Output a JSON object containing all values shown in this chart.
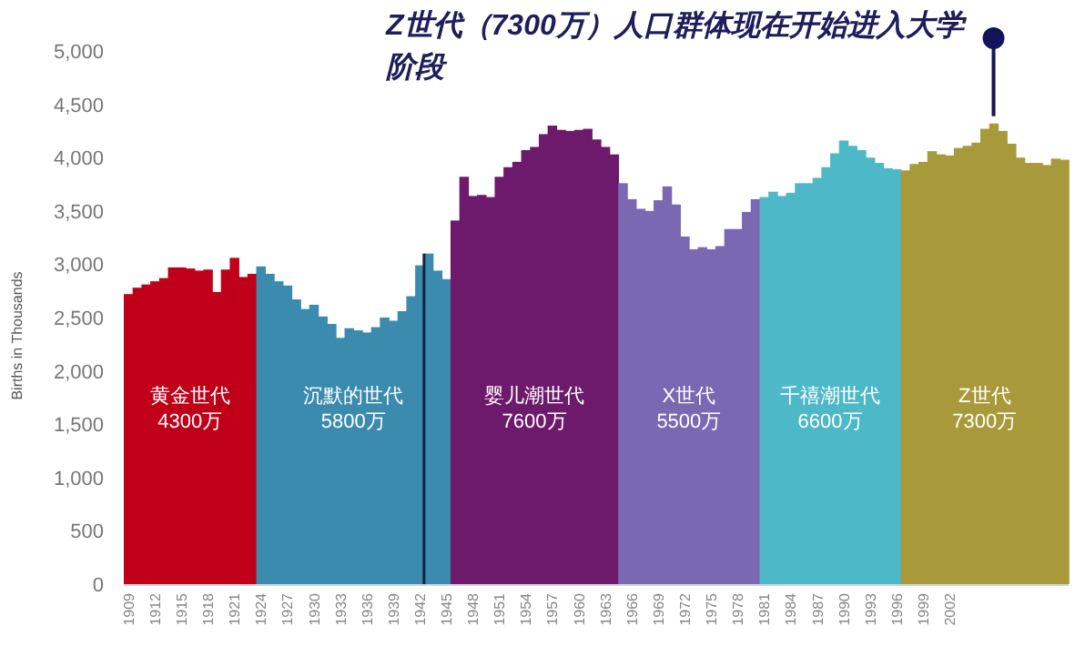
{
  "chart_data": {
    "type": "bar",
    "title": "Z世代（7300万）人口群体现在开始进入大学阶段",
    "ylabel": "Births in Thousands",
    "categories": [
      "1909",
      null,
      null,
      "1912",
      null,
      null,
      "1915",
      null,
      null,
      "1918",
      null,
      null,
      "1921",
      null,
      null,
      "1924",
      null,
      null,
      "1927",
      null,
      null,
      "1930",
      null,
      null,
      "1933",
      null,
      null,
      "1936",
      null,
      null,
      "1939",
      null,
      null,
      "1942",
      null,
      null,
      "1945",
      null,
      null,
      "1948",
      null,
      null,
      "1951",
      null,
      null,
      "1954",
      null,
      null,
      "1957",
      null,
      null,
      "1960",
      null,
      null,
      "1963",
      null,
      null,
      "1966",
      null,
      null,
      "1969",
      null,
      null,
      "1972",
      null,
      null,
      "1975",
      null,
      null,
      "1978",
      null,
      null,
      "1981",
      null,
      null,
      "1984",
      null,
      null,
      "1987",
      null,
      null,
      "1990",
      null,
      null,
      "1993",
      null,
      null,
      "1996",
      null,
      null,
      "1999",
      null,
      null,
      "2002",
      null,
      null,
      null,
      null,
      null,
      null,
      null,
      null,
      null,
      null,
      null,
      null,
      null
    ],
    "values": [
      2720,
      2780,
      2810,
      2840,
      2870,
      2970,
      2970,
      2960,
      2940,
      2950,
      2740,
      2950,
      3060,
      2880,
      2910,
      2980,
      2910,
      2840,
      2800,
      2670,
      2580,
      2620,
      2510,
      2440,
      2310,
      2400,
      2380,
      2360,
      2410,
      2500,
      2470,
      2560,
      2700,
      2990,
      3100,
      2940,
      2860,
      3410,
      3820,
      3640,
      3650,
      3630,
      3820,
      3910,
      3960,
      4070,
      4100,
      4220,
      4300,
      4260,
      4250,
      4260,
      4270,
      4170,
      4100,
      4030,
      3760,
      3610,
      3520,
      3500,
      3600,
      3730,
      3560,
      3260,
      3140,
      3160,
      3140,
      3170,
      3330,
      3330,
      3490,
      3610,
      3630,
      3680,
      3640,
      3670,
      3760,
      3760,
      3810,
      3910,
      4040,
      4160,
      4110,
      4070,
      4000,
      3950,
      3900,
      3890,
      3880,
      3940,
      3960,
      4060,
      4030,
      4020,
      4090,
      4110,
      4140,
      4270,
      4320,
      4250,
      4130,
      4000,
      3950,
      3950,
      3930,
      3990,
      3980
    ],
    "colors": [
      "#c00018",
      "#c00018",
      "#c00018",
      "#c00018",
      "#c00018",
      "#c00018",
      "#c00018",
      "#c00018",
      "#c00018",
      "#c00018",
      "#c00018",
      "#c00018",
      "#c00018",
      "#c00018",
      "#c00018",
      "#3a8bad",
      "#3a8bad",
      "#3a8bad",
      "#3a8bad",
      "#3a8bad",
      "#3a8bad",
      "#3a8bad",
      "#3a8bad",
      "#3a8bad",
      "#3a8bad",
      "#3a8bad",
      "#3a8bad",
      "#3a8bad",
      "#3a8bad",
      "#3a8bad",
      "#3a8bad",
      "#3a8bad",
      "#3a8bad",
      "#3a8bad",
      "#3a8bad",
      "#3a8bad",
      "#3a8bad",
      "#6e1a6c",
      "#6e1a6c",
      "#6e1a6c",
      "#6e1a6c",
      "#6e1a6c",
      "#6e1a6c",
      "#6e1a6c",
      "#6e1a6c",
      "#6e1a6c",
      "#6e1a6c",
      "#6e1a6c",
      "#6e1a6c",
      "#6e1a6c",
      "#6e1a6c",
      "#6e1a6c",
      "#6e1a6c",
      "#6e1a6c",
      "#6e1a6c",
      "#6e1a6c",
      "#7a68b2",
      "#7a68b2",
      "#7a68b2",
      "#7a68b2",
      "#7a68b2",
      "#7a68b2",
      "#7a68b2",
      "#7a68b2",
      "#7a68b2",
      "#7a68b2",
      "#7a68b2",
      "#7a68b2",
      "#7a68b2",
      "#7a68b2",
      "#7a68b2",
      "#7a68b2",
      "#4db8c8",
      "#4db8c8",
      "#4db8c8",
      "#4db8c8",
      "#4db8c8",
      "#4db8c8",
      "#4db8c8",
      "#4db8c8",
      "#4db8c8",
      "#4db8c8",
      "#4db8c8",
      "#4db8c8",
      "#4db8c8",
      "#4db8c8",
      "#4db8c8",
      "#4db8c8",
      "#a89a3a",
      "#a89a3a",
      "#a89a3a",
      "#a89a3a",
      "#a89a3a",
      "#a89a3a",
      "#a89a3a",
      "#a89a3a",
      "#a89a3a",
      "#a89a3a",
      "#a89a3a",
      "#a89a3a",
      "#a89a3a",
      "#a89a3a",
      "#a89a3a",
      "#a89a3a",
      "#a89a3a",
      "#a89a3a",
      "#a89a3a"
    ],
    "ylim": [
      0,
      5000
    ],
    "yticks": [
      0,
      500,
      {
        "value": 1000,
        "label": "1,000"
      },
      {
        "value": 1500,
        "label": "1,500"
      },
      {
        "value": 2000,
        "label": "2,000"
      },
      {
        "value": 2500,
        "label": "2,500"
      },
      {
        "value": 3000,
        "label": "3,000"
      },
      {
        "value": 3500,
        "label": "3,500"
      },
      {
        "value": 4000,
        "label": "4,000"
      },
      {
        "value": 4500,
        "label": "4,500"
      },
      {
        "value": 5000,
        "label": "5,000"
      }
    ],
    "ref_lines": [
      {
        "axis": "x",
        "value": "1942",
        "color": "#14213d"
      }
    ],
    "annotations": [
      "黄金世代\n4300万",
      "沉默的世代\n5800万",
      "婴儿潮世代\n7600万",
      "X世代\n5500万",
      "千禧潮世代\n6600万",
      "Z世代\n7300万"
    ],
    "grid": false
  }
}
